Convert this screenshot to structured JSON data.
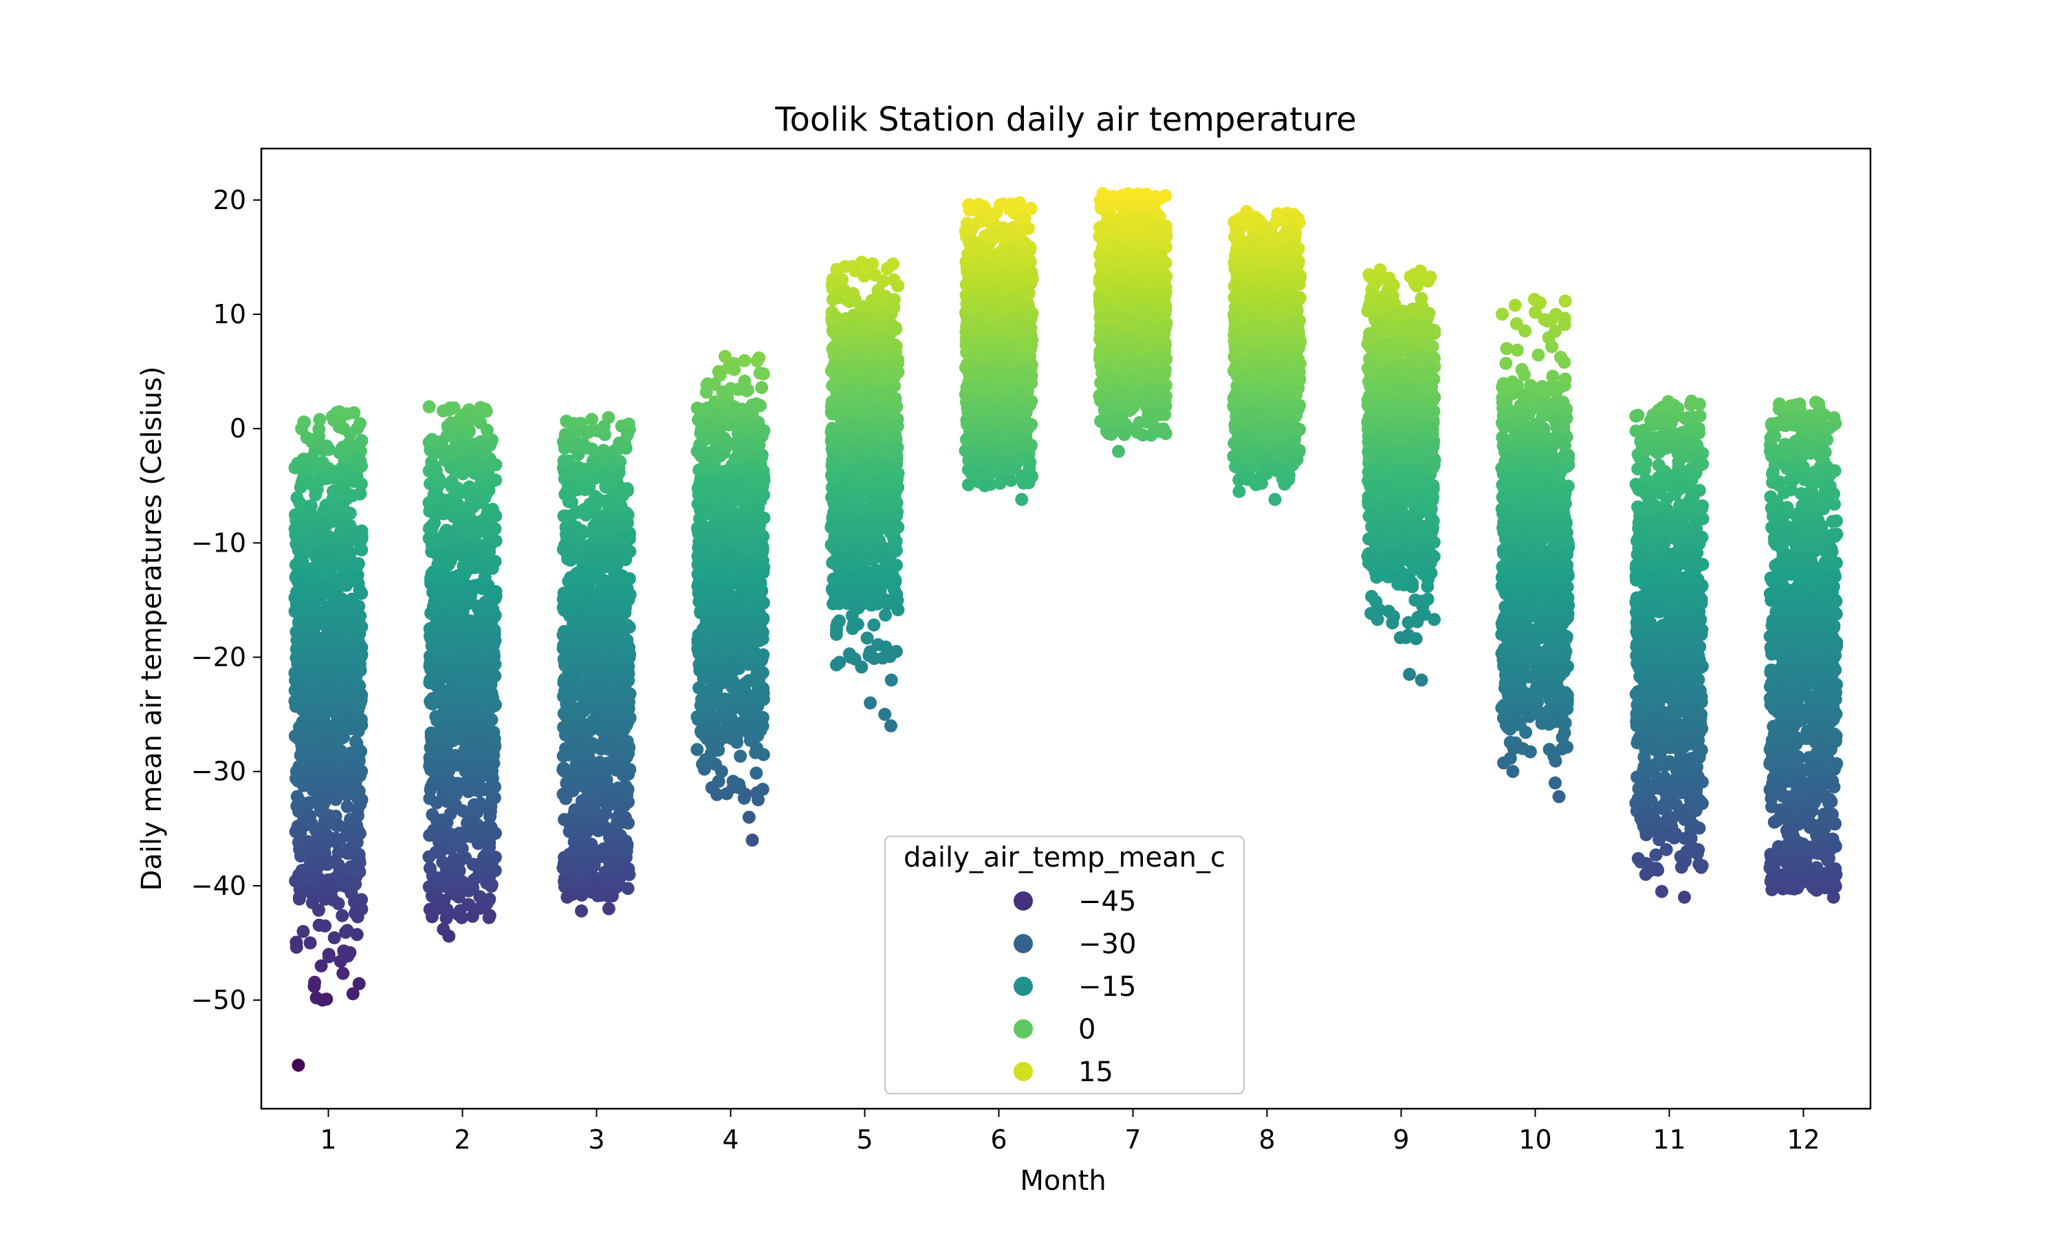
{
  "chart_data": {
    "type": "scatter",
    "title": "Toolik Station daily air temperature",
    "xlabel": "Month",
    "ylabel": "Daily mean air temperatures (Celsius)",
    "xlim": [
      0.5,
      12.5
    ],
    "ylim": [
      -59.5,
      24.5
    ],
    "x_ticks": [
      1,
      2,
      3,
      4,
      5,
      6,
      7,
      8,
      9,
      10,
      11,
      12
    ],
    "y_ticks": [
      20,
      10,
      0,
      -10,
      -20,
      -30,
      -40,
      -50
    ],
    "y_tick_labels": [
      "20",
      "10",
      "0",
      "−10",
      "−20",
      "−30",
      "−40",
      "−50"
    ],
    "jitter": "strip",
    "grid": false,
    "colormap": "viridis",
    "color_range": [
      -56,
      21
    ],
    "hue": "daily_air_temp_mean_c",
    "legend": {
      "title": "daily_air_temp_mean_c",
      "placement": "lower center",
      "entries": [
        {
          "label": "−45",
          "value": -45,
          "color": "#46317e"
        },
        {
          "label": "−30",
          "value": -30,
          "color": "#33638d"
        },
        {
          "label": "−15",
          "value": -15,
          "color": "#21918c"
        },
        {
          "label": "0",
          "value": 0,
          "color": "#5ec962"
        },
        {
          "label": "15",
          "value": 15,
          "color": "#d0e11c"
        }
      ]
    },
    "months": [
      {
        "month": 1,
        "min": -55.7,
        "max": 1.8,
        "core_low": -41.5,
        "core_high": -1.5,
        "outliers": [
          -44,
          -45,
          -46,
          -46.2,
          -49.8,
          -50,
          -55.7
        ]
      },
      {
        "month": 2,
        "min": -44.4,
        "max": 2.0,
        "core_low": -40.5,
        "core_high": -0.5,
        "outliers": [
          -42,
          -43.8,
          -44.4
        ]
      },
      {
        "month": 3,
        "min": -42.2,
        "max": 1.0,
        "core_low": -39.5,
        "core_high": -1.5,
        "outliers": [
          -41,
          -42,
          -42.2
        ]
      },
      {
        "month": 4,
        "min": -36.0,
        "max": 6.4,
        "core_low": -27.5,
        "core_high": 2.5,
        "outliers": [
          -30,
          -32,
          -34,
          -36
        ]
      },
      {
        "month": 5,
        "min": -26.0,
        "max": 14.6,
        "core_low": -15.5,
        "core_high": 11.5,
        "outliers": [
          -18,
          -20,
          -22,
          -24,
          -25,
          -26
        ]
      },
      {
        "month": 6,
        "min": -6.2,
        "max": 19.8,
        "core_low": -3.0,
        "core_high": 18.0,
        "outliers": [
          -4,
          -5,
          -6.2
        ]
      },
      {
        "month": 7,
        "min": -2.0,
        "max": 20.6,
        "core_low": 1.5,
        "core_high": 19.5,
        "outliers": [
          0,
          -0.5,
          -2
        ]
      },
      {
        "month": 8,
        "min": -6.2,
        "max": 19.0,
        "core_low": -3.5,
        "core_high": 18.0,
        "outliers": [
          -4.5,
          -5.5,
          -6.2
        ]
      },
      {
        "month": 9,
        "min": -22.0,
        "max": 14.2,
        "core_low": -13.0,
        "core_high": 11.0,
        "outliers": [
          -15,
          -17,
          -21.5,
          -22
        ]
      },
      {
        "month": 10,
        "min": -32.2,
        "max": 11.3,
        "core_low": -25.5,
        "core_high": 4.0,
        "outliers": [
          -28,
          -30,
          -31,
          -32.2,
          7,
          10,
          11.3
        ]
      },
      {
        "month": 11,
        "min": -41.0,
        "max": 2.4,
        "core_low": -35.5,
        "core_high": 0.5,
        "outliers": [
          -37,
          -39,
          -40.5,
          -41
        ]
      },
      {
        "month": 12,
        "min": -41.0,
        "max": 2.4,
        "core_low": -39.5,
        "core_high": 0.5,
        "outliers": [
          -40,
          -41
        ]
      }
    ]
  }
}
